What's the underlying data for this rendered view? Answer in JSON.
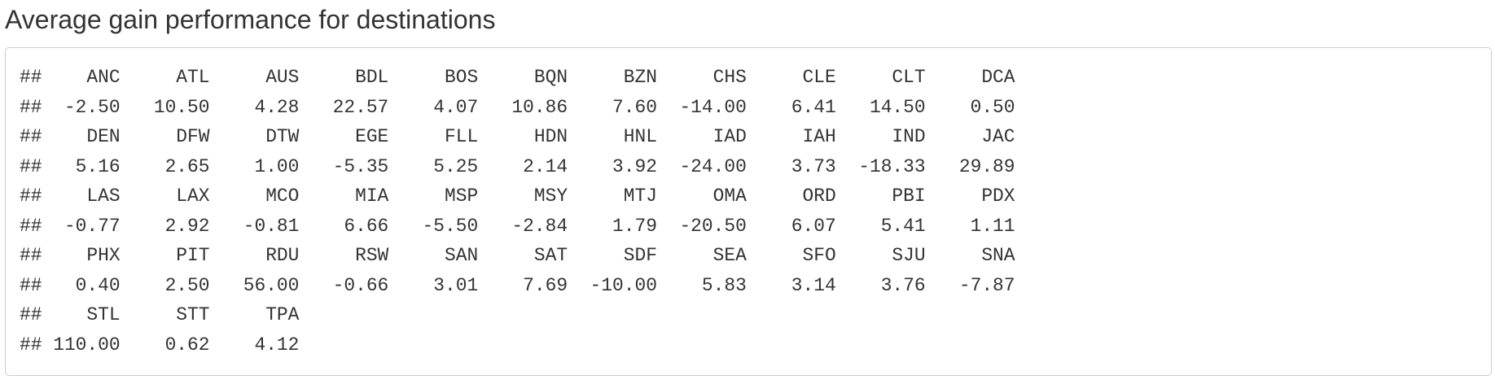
{
  "title": "Average gain performance for destinations",
  "output": {
    "prefix": "##",
    "rows": [
      {
        "codes": [
          "ANC",
          "ATL",
          "AUS",
          "BDL",
          "BOS",
          "BQN",
          "BZN",
          "CHS",
          "CLE",
          "CLT",
          "DCA"
        ],
        "values": [
          "-2.50",
          "10.50",
          "4.28",
          "22.57",
          "4.07",
          "10.86",
          "7.60",
          "-14.00",
          "6.41",
          "14.50",
          "0.50"
        ]
      },
      {
        "codes": [
          "DEN",
          "DFW",
          "DTW",
          "EGE",
          "FLL",
          "HDN",
          "HNL",
          "IAD",
          "IAH",
          "IND",
          "JAC"
        ],
        "values": [
          "5.16",
          "2.65",
          "1.00",
          "-5.35",
          "5.25",
          "2.14",
          "3.92",
          "-24.00",
          "3.73",
          "-18.33",
          "29.89"
        ]
      },
      {
        "codes": [
          "LAS",
          "LAX",
          "MCO",
          "MIA",
          "MSP",
          "MSY",
          "MTJ",
          "OMA",
          "ORD",
          "PBI",
          "PDX"
        ],
        "values": [
          "-0.77",
          "2.92",
          "-0.81",
          "6.66",
          "-5.50",
          "-2.84",
          "1.79",
          "-20.50",
          "6.07",
          "5.41",
          "1.11"
        ]
      },
      {
        "codes": [
          "PHX",
          "PIT",
          "RDU",
          "RSW",
          "SAN",
          "SAT",
          "SDF",
          "SEA",
          "SFO",
          "SJU",
          "SNA"
        ],
        "values": [
          "0.40",
          "2.50",
          "56.00",
          "-0.66",
          "3.01",
          "7.69",
          "-10.00",
          "5.83",
          "3.14",
          "3.76",
          "-7.87"
        ]
      },
      {
        "codes": [
          "STL",
          "STT",
          "TPA"
        ],
        "values": [
          "110.00",
          "0.62",
          "4.12"
        ]
      }
    ]
  }
}
